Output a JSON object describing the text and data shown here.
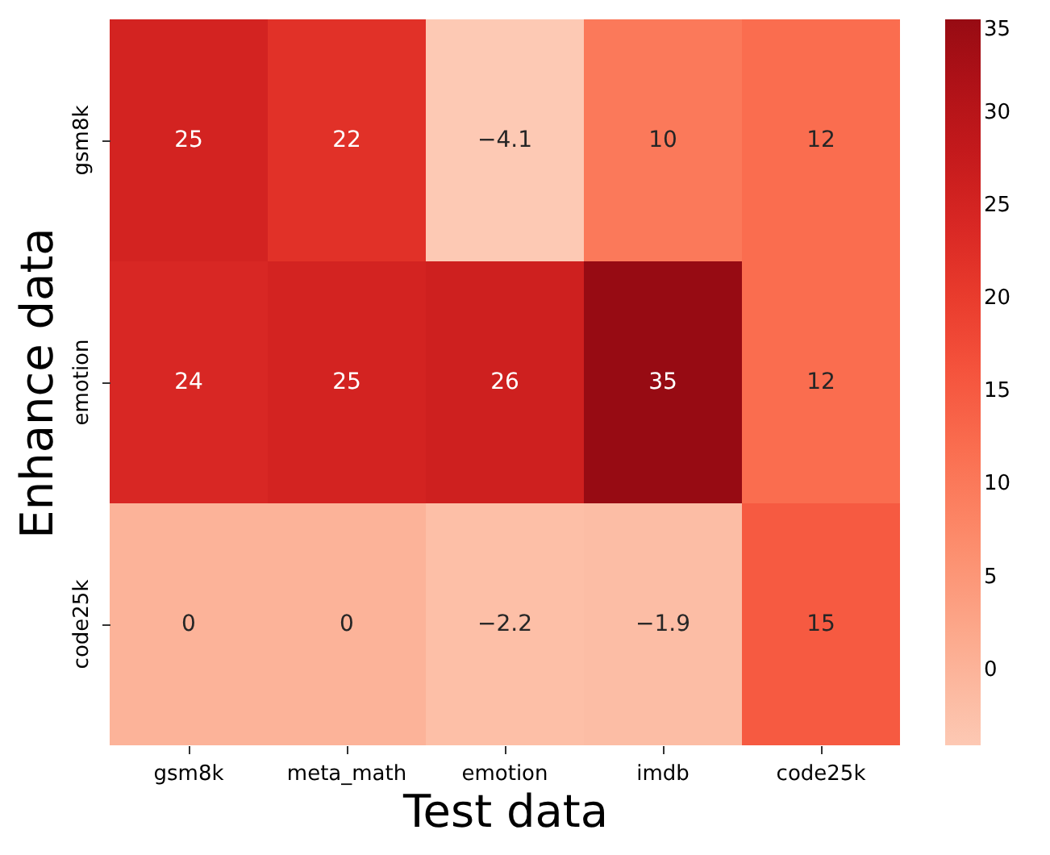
{
  "chart_data": {
    "type": "heatmap",
    "xlabel": "Test data",
    "ylabel": "Enhance data",
    "categories": [
      "gsm8k",
      "meta_math",
      "emotion",
      "imdb",
      "code25k"
    ],
    "y_categories": [
      "gsm8k",
      "emotion",
      "code25k"
    ],
    "cells": [
      [
        25,
        22,
        -4.1,
        10,
        12
      ],
      [
        24,
        25,
        26,
        35,
        12
      ],
      [
        0,
        0,
        -2.2,
        -1.9,
        15
      ]
    ],
    "data_labels": true,
    "clim": [
      -4.1,
      35
    ],
    "cticks": [
      0,
      5,
      10,
      15,
      20,
      25,
      30,
      35
    ]
  }
}
